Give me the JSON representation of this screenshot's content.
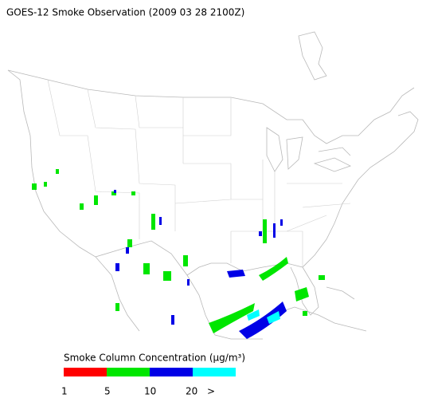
{
  "title": "GOES-12 Smoke Observation (2009 03 28  2100Z)",
  "legend": {
    "title": "Smoke Column Concentration (μg/m³)",
    "colors": [
      "#ff0000",
      "#00e600",
      "#0000e6",
      "#00ffff"
    ],
    "labels": [
      "1",
      "5",
      "10",
      "20",
      ">"
    ]
  }
}
